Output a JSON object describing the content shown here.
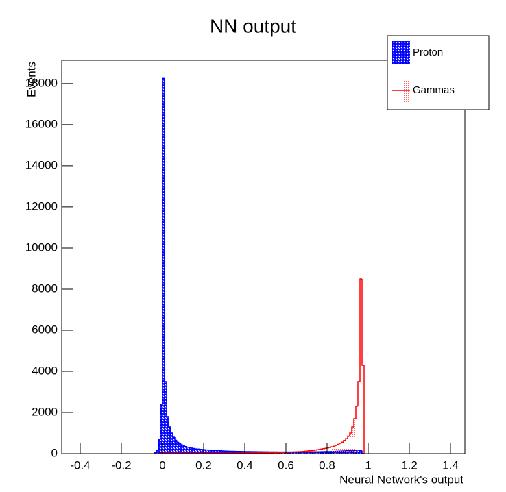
{
  "chart_data": {
    "type": "histogram",
    "title": "NN output",
    "x_label": "Neural Network's output",
    "y_label": "Events",
    "xlim": [
      -0.49,
      1.47
    ],
    "ylim": [
      0,
      19130
    ],
    "xticks": [
      -0.4,
      -0.2,
      0,
      0.2,
      0.4,
      0.6,
      0.8,
      1,
      1.2,
      1.4
    ],
    "yticks": [
      0,
      2000,
      4000,
      6000,
      8000,
      10000,
      12000,
      14000,
      16000,
      18000
    ],
    "grid": false,
    "legend": "upper right",
    "bins": [
      -0.04,
      -0.03,
      -0.02,
      -0.01,
      0,
      0.01,
      0.02,
      0.03,
      0.04,
      0.05,
      0.06,
      0.07,
      0.08,
      0.09,
      0.1,
      0.11,
      0.12,
      0.13,
      0.14,
      0.15,
      0.16,
      0.17,
      0.18,
      0.19,
      0.2,
      0.21,
      0.22,
      0.23,
      0.24,
      0.25,
      0.26,
      0.27,
      0.28,
      0.29,
      0.3,
      0.31,
      0.32,
      0.33,
      0.34,
      0.35,
      0.36,
      0.37,
      0.38,
      0.39,
      0.4,
      0.41,
      0.42,
      0.43,
      0.44,
      0.45,
      0.46,
      0.47,
      0.48,
      0.49,
      0.5,
      0.51,
      0.52,
      0.53,
      0.54,
      0.55,
      0.56,
      0.57,
      0.58,
      0.59,
      0.6,
      0.61,
      0.62,
      0.63,
      0.64,
      0.65,
      0.66,
      0.67,
      0.68,
      0.69,
      0.7,
      0.71,
      0.72,
      0.73,
      0.74,
      0.75,
      0.76,
      0.77,
      0.78,
      0.79,
      0.8,
      0.81,
      0.82,
      0.83,
      0.84,
      0.85,
      0.86,
      0.87,
      0.88,
      0.89,
      0.9,
      0.91,
      0.92,
      0.93,
      0.94,
      0.95,
      0.96,
      0.97,
      0.98
    ],
    "series": [
      {
        "name": "Proton",
        "color": "#0000ff",
        "fill": "hatch",
        "values": [
          60,
          150,
          700,
          2400,
          18250,
          3500,
          1800,
          1300,
          1000,
          800,
          650,
          550,
          480,
          420,
          370,
          340,
          310,
          290,
          270,
          250,
          230,
          220,
          210,
          200,
          190,
          180,
          170,
          165,
          160,
          155,
          150,
          145,
          140,
          135,
          130,
          125,
          120,
          118,
          115,
          112,
          110,
          108,
          105,
          103,
          100,
          100,
          98,
          96,
          95,
          94,
          92,
          90,
          90,
          88,
          87,
          86,
          85,
          84,
          83,
          82,
          81,
          80,
          80,
          80,
          80,
          80,
          80,
          80,
          80,
          80,
          80,
          80,
          80,
          80,
          80,
          82,
          84,
          86,
          88,
          90,
          92,
          94,
          96,
          98,
          100,
          100,
          105,
          110,
          115,
          120,
          125,
          130,
          135,
          140,
          145,
          150,
          155,
          160,
          165,
          170,
          150,
          0
        ]
      },
      {
        "name": "Gammas",
        "color": "#ff0000",
        "fill": "dots",
        "values": [
          0,
          0,
          5,
          10,
          20,
          20,
          20,
          20,
          20,
          20,
          20,
          20,
          20,
          20,
          20,
          20,
          20,
          20,
          20,
          20,
          20,
          20,
          20,
          20,
          20,
          20,
          20,
          20,
          20,
          20,
          20,
          20,
          20,
          20,
          20,
          20,
          20,
          22,
          22,
          24,
          24,
          26,
          26,
          28,
          28,
          30,
          30,
          32,
          32,
          34,
          34,
          36,
          36,
          38,
          40,
          42,
          44,
          46,
          48,
          50,
          52,
          55,
          58,
          62,
          66,
          70,
          75,
          80,
          85,
          90,
          95,
          100,
          110,
          120,
          130,
          140,
          150,
          160,
          175,
          190,
          205,
          220,
          240,
          260,
          280,
          300,
          330,
          360,
          400,
          450,
          500,
          560,
          640,
          730,
          850,
          1000,
          1300,
          1700,
          2300,
          3500,
          8500,
          4300
        ]
      }
    ]
  }
}
